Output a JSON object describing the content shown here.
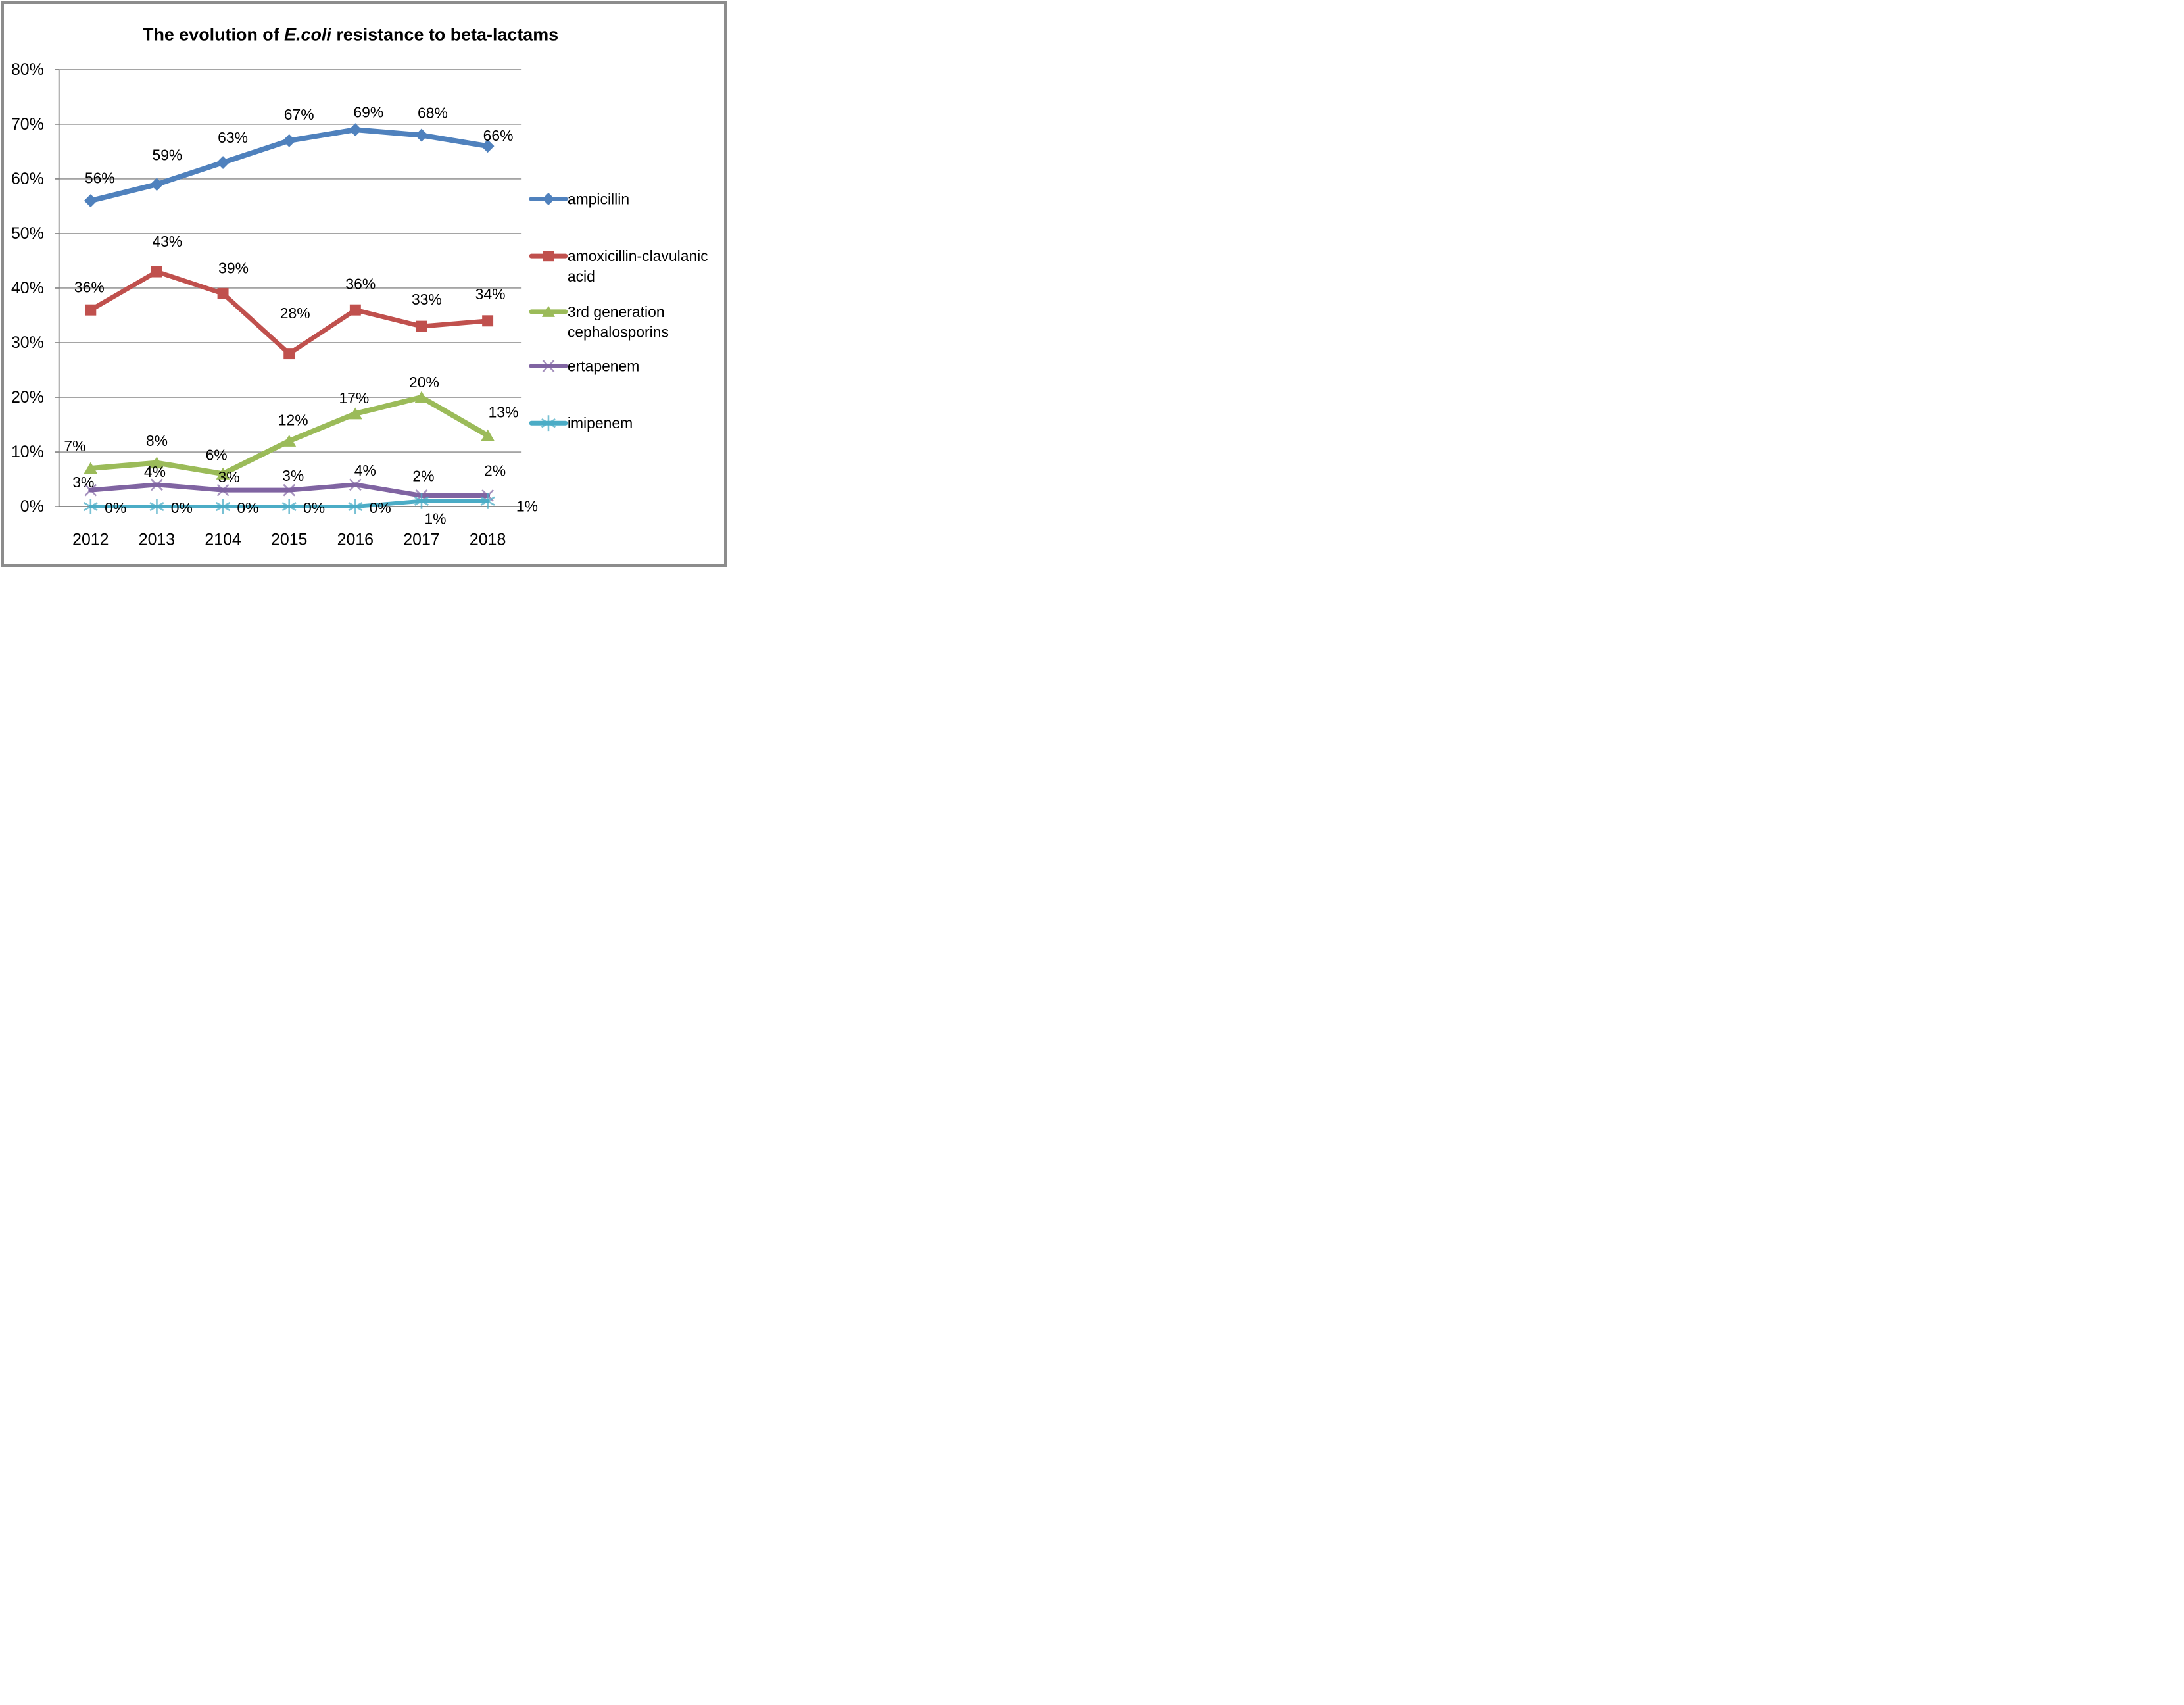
{
  "chart_data": {
    "type": "line",
    "title": "The evolution of E.coli resistance to beta-lactams",
    "title_parts": [
      {
        "text": "The evolution of ",
        "italic": false
      },
      {
        "text": "E.coli",
        "italic": true
      },
      {
        "text": " resistance to beta-lactams",
        "italic": false
      }
    ],
    "categories": [
      "2012",
      "2013",
      "2104",
      "2015",
      "2016",
      "2017",
      "2018"
    ],
    "xlabel": "",
    "ylabel": "",
    "ylim": [
      0,
      80
    ],
    "ytick_step": 10,
    "ytick_labels": [
      "0%",
      "10%",
      "20%",
      "30%",
      "40%",
      "50%",
      "60%",
      "70%",
      "80%"
    ],
    "grid": "horizontal",
    "legend_position": "right",
    "colors": {
      "gridline": "#878787",
      "axis": "#7F7F7F",
      "frame_border": "#8C8C8C",
      "background": "#FFFFFF",
      "label_text": "#000000"
    },
    "series": [
      {
        "name": "ampicillin",
        "legend_lines": [
          "ampicillin"
        ],
        "color": "#4F81BD",
        "marker": "diamond",
        "line_width": 8,
        "values": [
          56,
          59,
          63,
          67,
          69,
          68,
          66
        ],
        "labels": [
          "56%",
          "59%",
          "63%",
          "67%",
          "69%",
          "68%",
          "66%"
        ],
        "label_offsets": [
          [
            14,
            -35
          ],
          [
            16,
            -45
          ],
          [
            15,
            -38
          ],
          [
            15,
            -40
          ],
          [
            20,
            -27
          ],
          [
            17,
            -34
          ],
          [
            16,
            -16
          ]
        ]
      },
      {
        "name": "amoxicillin-clavulanic acid",
        "legend_lines": [
          "amoxicillin-clavulanic",
          "acid"
        ],
        "color": "#C0504D",
        "marker": "square",
        "line_width": 7,
        "values": [
          36,
          43,
          39,
          28,
          36,
          33,
          34
        ],
        "labels": [
          "36%",
          "43%",
          "39%",
          "28%",
          "36%",
          "33%",
          "34%"
        ],
        "label_offsets": [
          [
            -2,
            -35
          ],
          [
            16,
            -46
          ],
          [
            16,
            -39
          ],
          [
            9,
            -62
          ],
          [
            8,
            -40
          ],
          [
            8,
            -41
          ],
          [
            4,
            -41
          ]
        ]
      },
      {
        "name": "3rd generation cephalosporins",
        "legend_lines": [
          "3rd generation",
          "cephalosporins"
        ],
        "color": "#9BBB59",
        "marker": "triangle",
        "line_width": 8,
        "values": [
          7,
          8,
          6,
          12,
          17,
          20,
          13
        ],
        "labels": [
          "7%",
          "8%",
          "6%",
          "12%",
          "17%",
          "20%",
          "13%"
        ],
        "label_offsets": [
          [
            -24,
            -34
          ],
          [
            0,
            -34
          ],
          [
            -10,
            -29
          ],
          [
            6,
            -32
          ],
          [
            -2,
            -24
          ],
          [
            4,
            -23
          ],
          [
            24,
            -36
          ]
        ]
      },
      {
        "name": "ertapenem",
        "legend_lines": [
          "ertapenem"
        ],
        "color": "#8064A2",
        "marker": "x",
        "line_width": 7,
        "values": [
          3,
          4,
          3,
          3,
          4,
          2,
          2
        ],
        "labels": [
          "3%",
          "4%",
          "3%",
          "3%",
          "4%",
          "2%",
          "2%"
        ],
        "label_offsets": [
          [
            -11,
            -12
          ],
          [
            -3,
            -20
          ],
          [
            9,
            -20
          ],
          [
            6,
            -22
          ],
          [
            15,
            -22
          ],
          [
            3,
            -30
          ],
          [
            11,
            -38
          ]
        ]
      },
      {
        "name": "imipenem",
        "legend_lines": [
          "imipenem"
        ],
        "color": "#4BACC6",
        "marker": "asterisk",
        "line_width": 6,
        "values": [
          0,
          0,
          0,
          0,
          0,
          1,
          1
        ],
        "labels": [
          "0%",
          "0%",
          "0%",
          "0%",
          "0%",
          "1%",
          "1%"
        ],
        "label_offsets": [
          [
            38,
            2
          ],
          [
            38,
            2
          ],
          [
            38,
            2
          ],
          [
            38,
            2
          ],
          [
            38,
            2
          ],
          [
            21,
            27
          ],
          [
            60,
            8
          ]
        ]
      }
    ]
  }
}
